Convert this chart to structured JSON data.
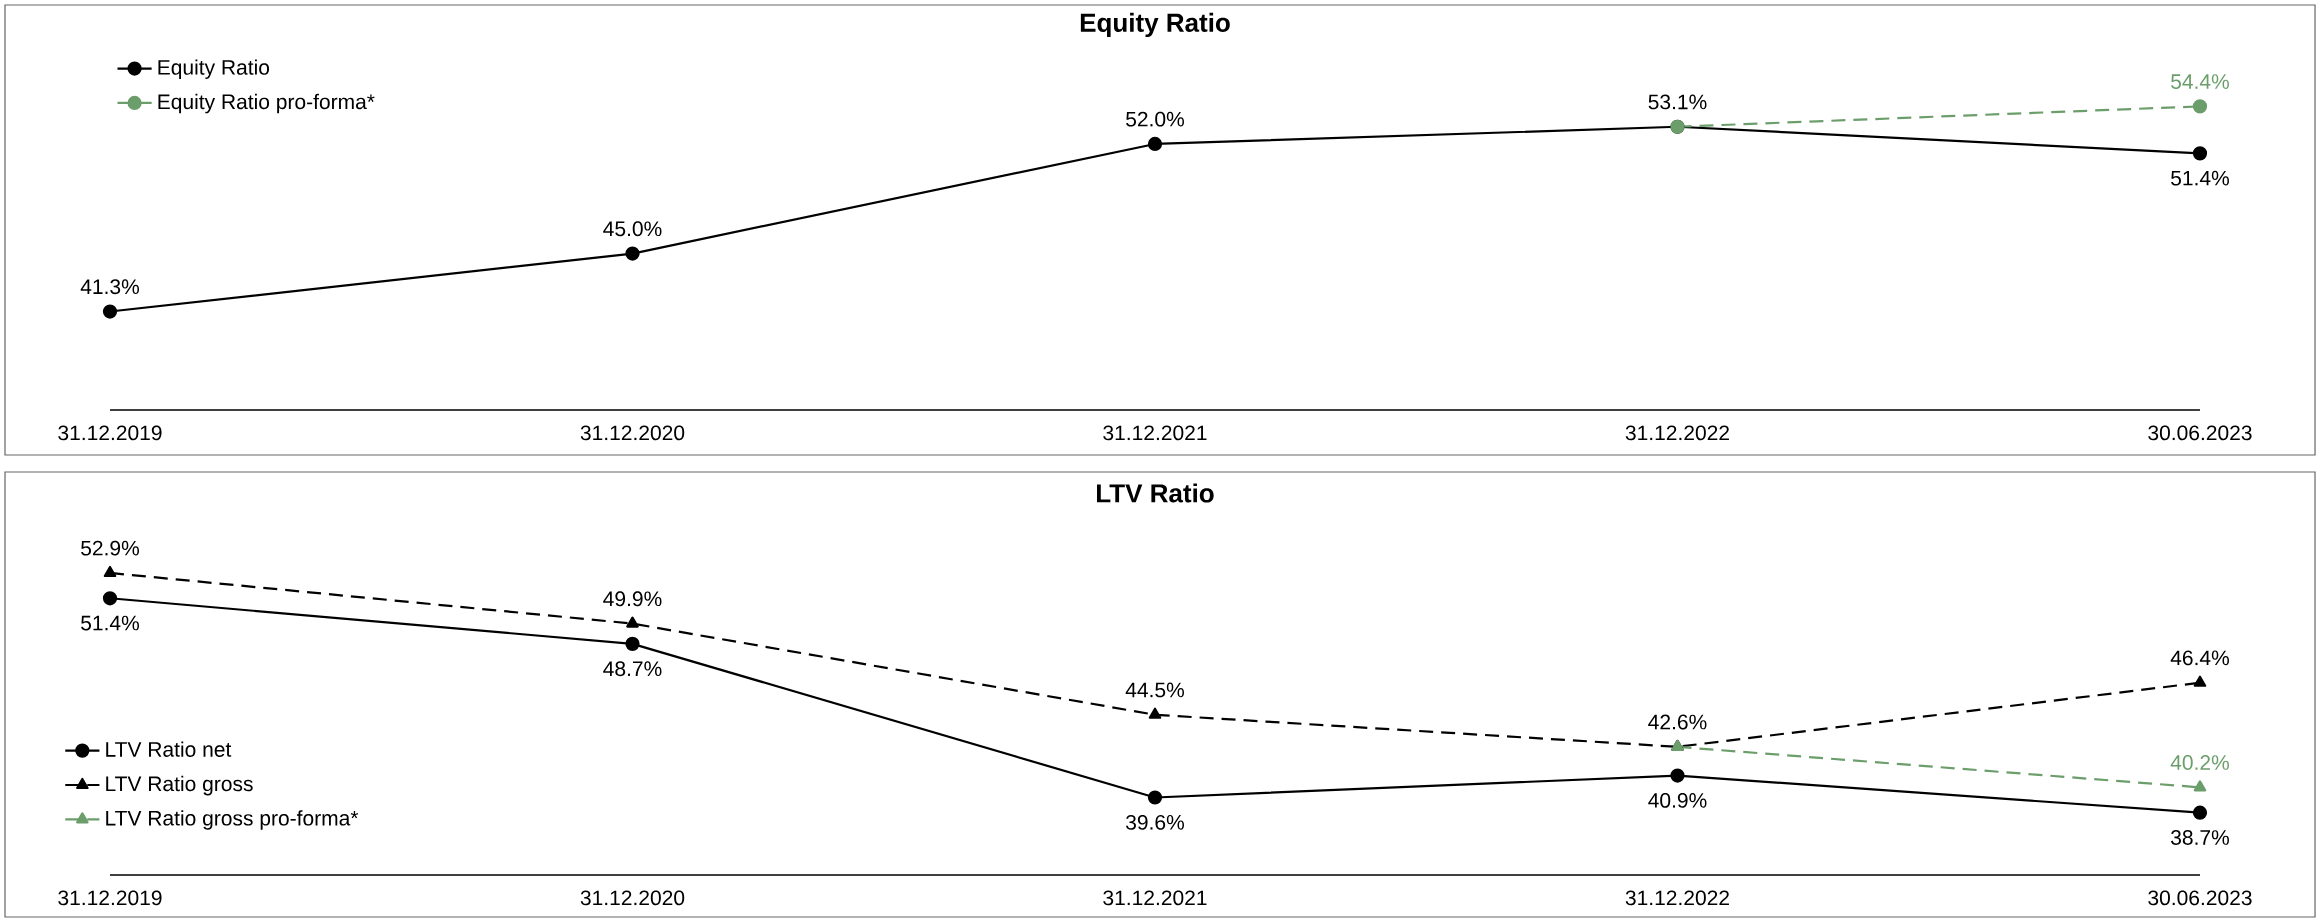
{
  "chart_data": [
    {
      "type": "line",
      "title": "Equity Ratio",
      "categories": [
        "31.12.2019",
        "31.12.2020",
        "31.12.2021",
        "31.12.2022",
        "30.06.2023"
      ],
      "tick_labels": "x",
      "legend": "top left",
      "series": [
        {
          "name": "Equity Ratio",
          "color": "#000000",
          "marker": "circle",
          "line_style": "solid",
          "values": [
            41.3,
            45.0,
            52.0,
            53.1,
            51.4
          ],
          "value_labels": [
            "41.3%",
            "45.0%",
            "52.0%",
            "53.1%",
            "51.4%"
          ]
        },
        {
          "name": "Equity Ratio pro-forma*",
          "color": "#6b9e6b",
          "marker": "circle",
          "line_style": "dashed",
          "values": [
            null,
            null,
            null,
            53.1,
            54.4
          ],
          "value_labels": [
            null,
            null,
            null,
            null,
            "54.4%"
          ]
        }
      ]
    },
    {
      "type": "line",
      "title": "LTV Ratio",
      "categories": [
        "31.12.2019",
        "31.12.2020",
        "31.12.2021",
        "31.12.2022",
        "30.06.2023"
      ],
      "tick_labels": "x",
      "legend": "left",
      "series": [
        {
          "name": "LTV Ratio net",
          "color": "#000000",
          "marker": "circle",
          "line_style": "solid",
          "values": [
            51.4,
            48.7,
            39.6,
            40.9,
            38.7
          ],
          "value_labels": [
            "51.4%",
            "48.7%",
            "39.6%",
            "40.9%",
            "38.7%"
          ]
        },
        {
          "name": "LTV Ratio gross",
          "color": "#000000",
          "marker": "triangle",
          "line_style": "dashed",
          "values": [
            52.9,
            49.9,
            44.5,
            42.6,
            46.4
          ],
          "value_labels": [
            "52.9%",
            "49.9%",
            "44.5%",
            "42.6%",
            "46.4%"
          ]
        },
        {
          "name": "LTV Ratio gross pro-forma*",
          "color": "#6b9e6b",
          "marker": "triangle",
          "line_style": "dashed",
          "values": [
            null,
            null,
            null,
            42.6,
            40.2
          ],
          "value_labels": [
            null,
            null,
            null,
            null,
            "40.2%"
          ]
        }
      ]
    }
  ]
}
